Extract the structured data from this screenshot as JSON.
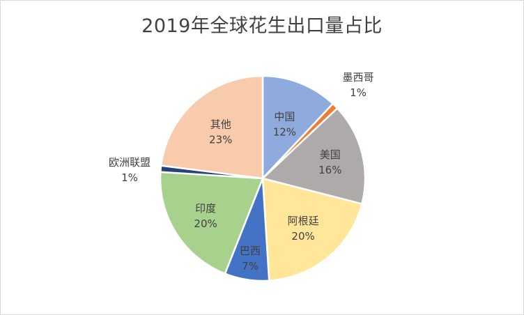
{
  "chart_data": {
    "type": "pie",
    "title": "2019年全球花生出口量占比",
    "slices": [
      {
        "name": "中国",
        "value": 12,
        "label": "12%",
        "color": "#8faadc"
      },
      {
        "name": "墨西哥",
        "value": 1,
        "label": "1%",
        "color": "#ed7d31"
      },
      {
        "name": "美国",
        "value": 16,
        "label": "16%",
        "color": "#aeaaaa"
      },
      {
        "name": "阿根廷",
        "value": 20,
        "label": "20%",
        "color": "#ffe699"
      },
      {
        "name": "巴西",
        "value": 7,
        "label": "7%",
        "color": "#4472c4"
      },
      {
        "name": "印度",
        "value": 20,
        "label": "20%",
        "color": "#a9d18e"
      },
      {
        "name": "欧洲联盟",
        "value": 1,
        "label": "1%",
        "color": "#264478"
      },
      {
        "name": "其他",
        "value": 23,
        "label": "23%",
        "color": "#f8cbad"
      }
    ],
    "start_angle_deg": 0,
    "direction": "clockwise",
    "legend": "none"
  }
}
